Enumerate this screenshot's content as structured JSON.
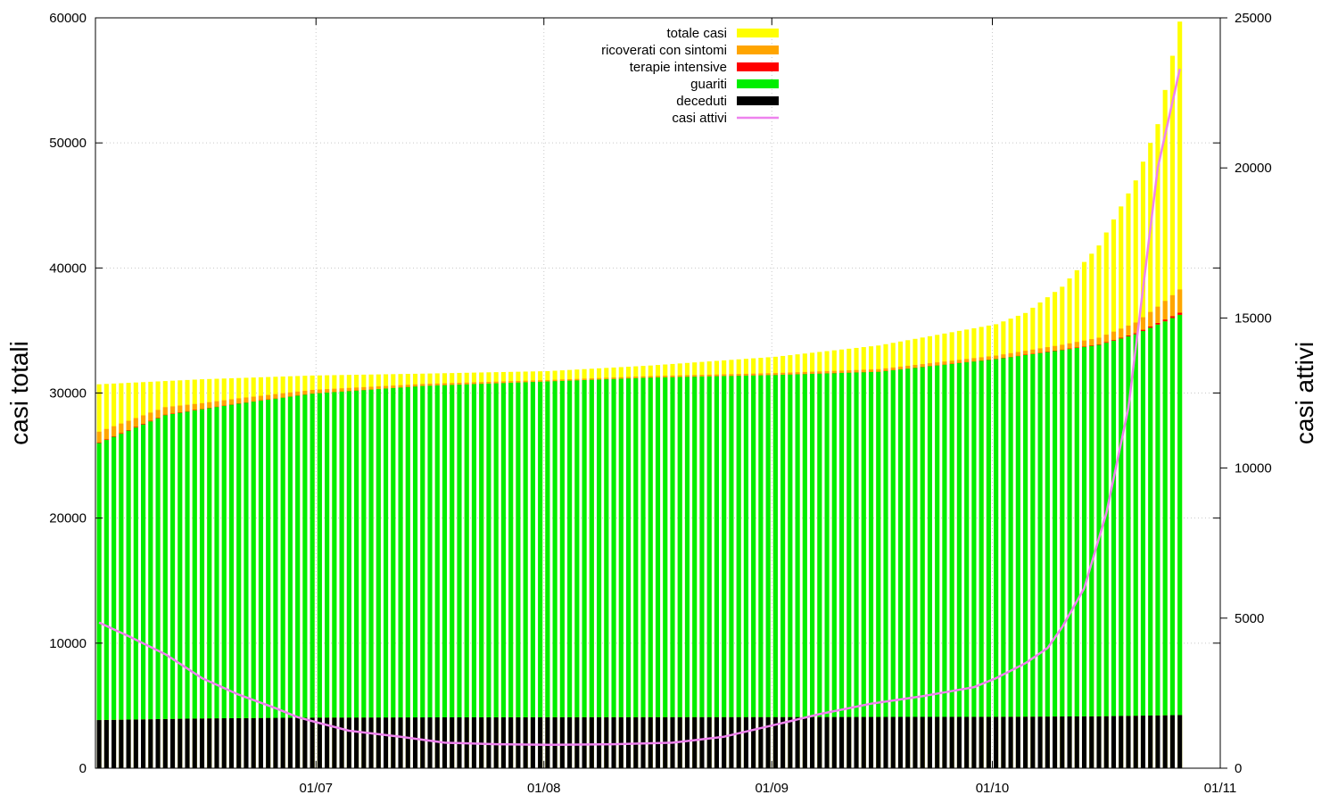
{
  "chart_data": {
    "type": "bar",
    "stacked": true,
    "x_axis": {
      "type": "date",
      "start": "2020-06-01",
      "end": "2020-11-01",
      "ticks": [
        {
          "date": "2020-07-01",
          "label": "01/07"
        },
        {
          "date": "2020-08-01",
          "label": "01/08"
        },
        {
          "date": "2020-09-01",
          "label": "01/09"
        },
        {
          "date": "2020-10-01",
          "label": "01/10"
        },
        {
          "date": "2020-11-01",
          "label": "01/11"
        }
      ]
    },
    "y_left": {
      "label": "casi totali",
      "min": 0,
      "max": 60000,
      "ticks": [
        0,
        10000,
        20000,
        30000,
        40000,
        50000,
        60000
      ]
    },
    "y_right": {
      "label": "casi attivi",
      "min": 0,
      "max": 25000,
      "ticks": [
        0,
        5000,
        10000,
        15000,
        20000,
        25000
      ]
    },
    "grid": true,
    "legend_position": "top-center",
    "legend": [
      {
        "name": "totale casi",
        "color": "#ffff00",
        "kind": "box"
      },
      {
        "name": "ricoverati con sintomi",
        "color": "#ffa500",
        "kind": "box"
      },
      {
        "name": "terapie intensive",
        "color": "#ff0000",
        "kind": "box"
      },
      {
        "name": "guariti",
        "color": "#00ee00",
        "kind": "box"
      },
      {
        "name": "deceduti",
        "color": "#000000",
        "kind": "box"
      },
      {
        "name": "casi attivi",
        "color": "#ee82ee",
        "kind": "line"
      }
    ],
    "first_date": "2020-06-01",
    "last_date": "2020-10-26",
    "series": [
      {
        "name": "totale casi",
        "axis": "left",
        "color": "#ffff00",
        "points": [
          [
            "2020-06-01",
            30700
          ],
          [
            "2020-06-15",
            31100
          ],
          [
            "2020-06-30",
            31400
          ],
          [
            "2020-07-15",
            31550
          ],
          [
            "2020-08-01",
            31750
          ],
          [
            "2020-08-15",
            32200
          ],
          [
            "2020-09-01",
            32900
          ],
          [
            "2020-09-15",
            33800
          ],
          [
            "2020-10-01",
            35500
          ],
          [
            "2020-10-05",
            36400
          ],
          [
            "2020-10-10",
            38500
          ],
          [
            "2020-10-15",
            41800
          ],
          [
            "2020-10-20",
            47000
          ],
          [
            "2020-10-23",
            51500
          ],
          [
            "2020-10-26",
            59700
          ]
        ]
      },
      {
        "name": "ricoverati con sintomi",
        "axis": "left",
        "color": "#ffa500",
        "points": [
          [
            "2020-06-01",
            850
          ],
          [
            "2020-06-15",
            450
          ],
          [
            "2020-06-30",
            280
          ],
          [
            "2020-07-15",
            150
          ],
          [
            "2020-08-01",
            100
          ],
          [
            "2020-08-15",
            110
          ],
          [
            "2020-09-01",
            140
          ],
          [
            "2020-09-15",
            190
          ],
          [
            "2020-10-01",
            260
          ],
          [
            "2020-10-10",
            380
          ],
          [
            "2020-10-15",
            520
          ],
          [
            "2020-10-20",
            850
          ],
          [
            "2020-10-23",
            1300
          ],
          [
            "2020-10-26",
            1850
          ]
        ]
      },
      {
        "name": "terapie intensive",
        "axis": "left",
        "color": "#ff0000",
        "points": [
          [
            "2020-06-01",
            60
          ],
          [
            "2020-06-15",
            35
          ],
          [
            "2020-06-30",
            20
          ],
          [
            "2020-07-15",
            12
          ],
          [
            "2020-08-01",
            8
          ],
          [
            "2020-09-01",
            15
          ],
          [
            "2020-10-01",
            25
          ],
          [
            "2020-10-15",
            55
          ],
          [
            "2020-10-20",
            90
          ],
          [
            "2020-10-26",
            180
          ]
        ]
      },
      {
        "name": "guariti",
        "axis": "left",
        "color": "#00ee00",
        "points": [
          [
            "2020-06-01",
            22150
          ],
          [
            "2020-06-10",
            24300
          ],
          [
            "2020-06-20",
            25150
          ],
          [
            "2020-06-30",
            25900
          ],
          [
            "2020-07-15",
            26500
          ],
          [
            "2020-08-01",
            26850
          ],
          [
            "2020-08-15",
            27150
          ],
          [
            "2020-09-01",
            27350
          ],
          [
            "2020-09-15",
            27600
          ],
          [
            "2020-10-01",
            28600
          ],
          [
            "2020-10-10",
            29300
          ],
          [
            "2020-10-15",
            29700
          ],
          [
            "2020-10-20",
            30500
          ],
          [
            "2020-10-26",
            32000
          ]
        ]
      },
      {
        "name": "deceduti",
        "axis": "left",
        "color": "#000000",
        "points": [
          [
            "2020-06-01",
            3850
          ],
          [
            "2020-06-15",
            3980
          ],
          [
            "2020-06-30",
            4050
          ],
          [
            "2020-08-01",
            4080
          ],
          [
            "2020-09-01",
            4090
          ],
          [
            "2020-10-01",
            4110
          ],
          [
            "2020-10-15",
            4150
          ],
          [
            "2020-10-26",
            4250
          ]
        ]
      },
      {
        "name": "casi attivi",
        "axis": "right",
        "color": "#ee82ee",
        "points": [
          [
            "2020-06-01",
            4850
          ],
          [
            "2020-06-05",
            4400
          ],
          [
            "2020-06-10",
            3800
          ],
          [
            "2020-06-15",
            3000
          ],
          [
            "2020-06-20",
            2450
          ],
          [
            "2020-06-25",
            2000
          ],
          [
            "2020-06-28",
            1700
          ],
          [
            "2020-07-01",
            1500
          ],
          [
            "2020-07-05",
            1250
          ],
          [
            "2020-07-12",
            1050
          ],
          [
            "2020-07-18",
            850
          ],
          [
            "2020-07-25",
            800
          ],
          [
            "2020-08-01",
            780
          ],
          [
            "2020-08-10",
            800
          ],
          [
            "2020-08-18",
            850
          ],
          [
            "2020-08-25",
            1050
          ],
          [
            "2020-09-01",
            1450
          ],
          [
            "2020-09-07",
            1800
          ],
          [
            "2020-09-14",
            2150
          ],
          [
            "2020-09-21",
            2400
          ],
          [
            "2020-09-28",
            2700
          ],
          [
            "2020-10-01",
            3000
          ],
          [
            "2020-10-05",
            3500
          ],
          [
            "2020-10-08",
            4000
          ],
          [
            "2020-10-10",
            4700
          ],
          [
            "2020-10-13",
            6000
          ],
          [
            "2020-10-16",
            8500
          ],
          [
            "2020-10-19",
            12000
          ],
          [
            "2020-10-21",
            16000
          ],
          [
            "2020-10-23",
            20000
          ],
          [
            "2020-10-26",
            23300
          ]
        ]
      }
    ]
  }
}
